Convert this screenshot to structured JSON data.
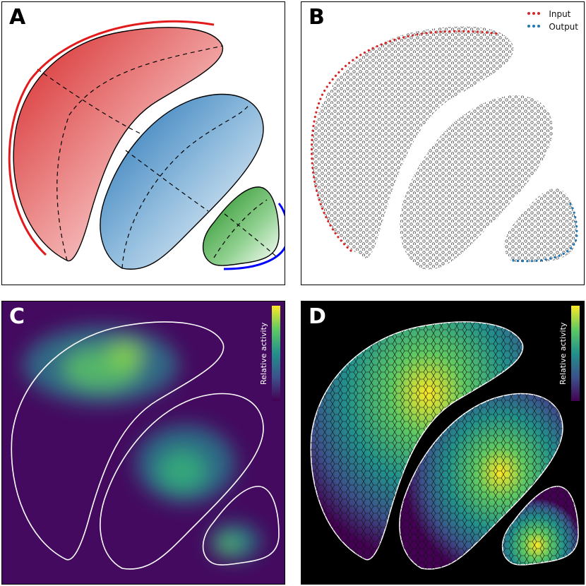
{
  "panels": {
    "a": {
      "label": "A"
    },
    "b": {
      "label": "B",
      "legend": {
        "input": "Input",
        "output": "Output"
      }
    },
    "c": {
      "label": "C",
      "colorbar": "Relative activity"
    },
    "d": {
      "label": "D",
      "colorbar": "Relative activity"
    }
  },
  "colors": {
    "red": "#e31a1c",
    "blue": "#1f77b4",
    "green": "#2ca02c",
    "input_dot": "#d62728",
    "output_dot": "#1f77b4",
    "edge_blue": "#0000ff"
  }
}
